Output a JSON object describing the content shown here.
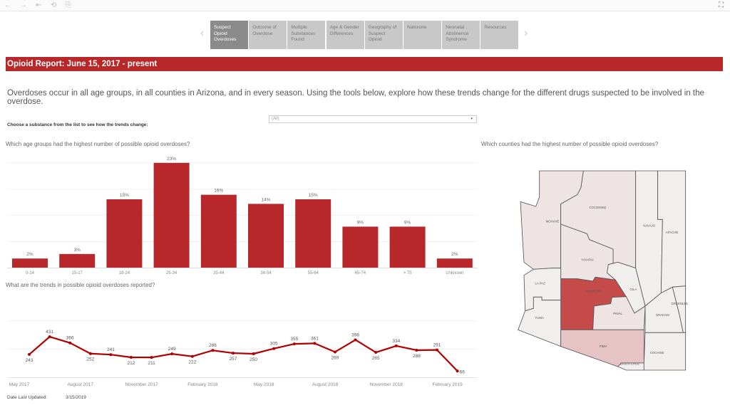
{
  "toolbar": {
    "back": "←",
    "forward": "→",
    "home": "⇤",
    "revert": "⟲",
    "pause": "⎘",
    "fullscreen": "⛶"
  },
  "nav": {
    "prev": "‹",
    "next": "›",
    "tabs": [
      {
        "label": "Suspect Opioid Overdoses",
        "active": true
      },
      {
        "label": "Outcome of Overdose"
      },
      {
        "label": "Mulitple Substances Found"
      },
      {
        "label": "Age & Gender Differences"
      },
      {
        "label": "Geography of Suspect Opioid"
      },
      {
        "label": "Naloxone"
      },
      {
        "label": "Neonatal Abstinence Syndrome"
      },
      {
        "label": "Resources"
      }
    ]
  },
  "banner": "Opioid Report: June 15, 2017 - present",
  "description": "Overdoses occur in all age groups, in all counties in Arizona, and in every season. Using the tools below, explore how these trends change for the different drugs suspected to be involved in the overdose.",
  "filter": {
    "label": "Choose a substance from the list to see how the trends change:",
    "value": "(All)",
    "caret": "▾"
  },
  "map": {
    "title": "Which counties had the highest number of possible opioid overdoses?",
    "counties": [
      "MOHAVE",
      "COCONINO",
      "NAVAJO",
      "APACHE",
      "YAVAPAI",
      "LA PAZ",
      "MARICOPA",
      "GILA",
      "GREENLEE",
      "GRAHAM",
      "PINAL",
      "YUMA",
      "PIMA",
      "COCHISE",
      "SANTA CRUZ"
    ],
    "colors": {
      "high": "#c54a4a",
      "mid": "#e6c3c5",
      "low": "#efe4e4",
      "min": "#f1eeee"
    }
  },
  "footer": {
    "label": "Date Last Updated:",
    "value": "3/15/2019"
  },
  "chart_data": [
    {
      "type": "bar",
      "title": "Which age groups had the highest number of possible opioid overdoses?",
      "categories": [
        "0-14",
        "15-17",
        "18-24",
        "25-34",
        "35-44",
        "34-54",
        "55-64",
        "65-74",
        "> 75",
        "Unknown"
      ],
      "values": [
        2,
        3,
        15,
        23,
        16,
        14,
        15,
        9,
        9,
        2
      ],
      "labels": [
        "2%",
        "3%",
        "15%",
        "23%",
        "16%",
        "14%",
        "15%",
        "9%",
        "9%",
        "2%"
      ],
      "ylim": [
        0,
        25
      ],
      "color": "#b8282a",
      "grid": true
    },
    {
      "type": "line",
      "title": "What are the trends in possible opioid overdoses reported?",
      "values": [
        243,
        431,
        366,
        252,
        241,
        212,
        211,
        249,
        222,
        286,
        257,
        250,
        305,
        355,
        361,
        269,
        398,
        265,
        334,
        288,
        291,
        66
      ],
      "x_start": "May 2017",
      "tick_labels": [
        "May 2017",
        "August 2017",
        "November 2017",
        "February 2018",
        "May 2018",
        "August 2018",
        "November 2018",
        "February 2019"
      ],
      "ylim": [
        0,
        600
      ],
      "color": "#b00000",
      "grid": true
    }
  ]
}
